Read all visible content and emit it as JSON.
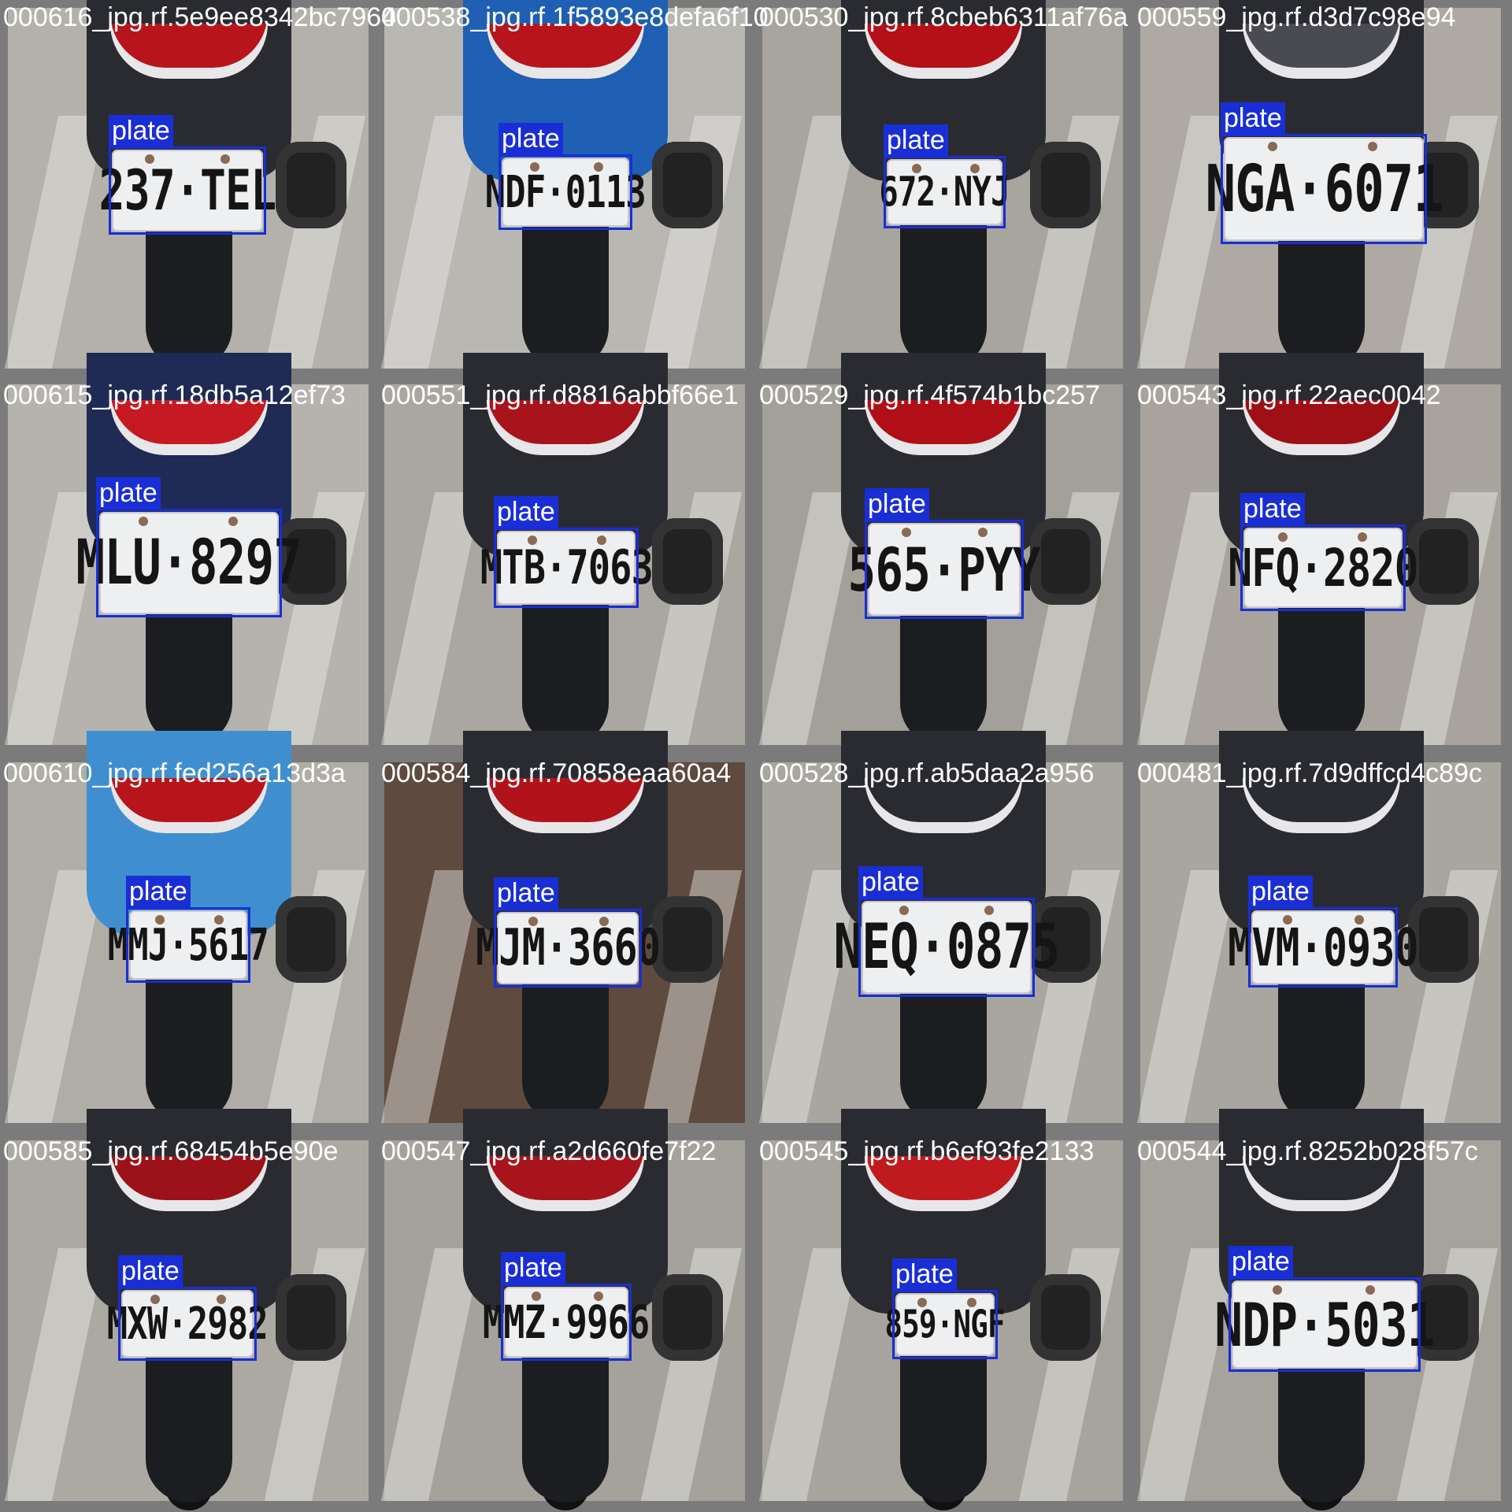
{
  "tiles": [
    {
      "filename": "000616_jpg.rf.5e9ee8342bc7964",
      "class_label": "plate",
      "plate_text": "237·TEL",
      "colors": {
        "tail": "#b7151b",
        "floor": "#b4b1ab"
      }
    },
    {
      "filename": "000538_jpg.rf.1f5893e8defa6f10",
      "class_label": "plate",
      "plate_text": "NDF·0113",
      "colors": {
        "tail": "#b7151b",
        "floor": "#b9b7b2"
      }
    },
    {
      "filename": "000530_jpg.rf.8cbeb6311af76a",
      "class_label": "plate",
      "plate_text": "672·NYJ",
      "colors": {
        "tail": "#b50f18",
        "floor": "#a8a49e"
      }
    },
    {
      "filename": "000559_jpg.rf.d3d7c98e94",
      "class_label": "plate",
      "plate_text": "NGA·6071",
      "colors": {
        "tail": "#4a4b52",
        "floor": "#aeaaa3"
      }
    },
    {
      "filename": "000615_jpg.rf.18db5a12ef73",
      "class_label": "plate",
      "plate_text": "MLU·8297",
      "colors": {
        "tail": "#c51a22",
        "floor": "#b6b3ae"
      }
    },
    {
      "filename": "000551_jpg.rf.d8816abbf66e1",
      "class_label": "plate",
      "plate_text": "MTB·7063",
      "colors": {
        "tail": "#a8141c",
        "floor": "#aaa7a1"
      }
    },
    {
      "filename": "000529_jpg.rf.4f574b1bc257",
      "class_label": "plate",
      "plate_text": "565·PYY",
      "colors": {
        "tail": "#b10f17",
        "floor": "#a3a09a"
      }
    },
    {
      "filename": "000543_jpg.rf.22aec0042",
      "class_label": "plate",
      "plate_text": "NFQ·2820",
      "colors": {
        "tail": "#9e1016",
        "floor": "#a8a49d"
      }
    },
    {
      "filename": "000610_jpg.rf.fed256a13d3a",
      "class_label": "plate",
      "plate_text": "MMJ·5617",
      "colors": {
        "tail": "#b7151b",
        "floor": "#b0ada7"
      }
    },
    {
      "filename": "000584_jpg.rf.70858eaa60a4",
      "class_label": "plate",
      "plate_text": "MJM·3660",
      "colors": {
        "tail": "#b2131b",
        "floor": "#5e4a3f"
      }
    },
    {
      "filename": "000528_jpg.rf.ab5daa2a956",
      "class_label": "plate",
      "plate_text": "NEQ·0875",
      "colors": {
        "tail": "#2a2b30",
        "floor": "#a9a6a0"
      }
    },
    {
      "filename": "000481_jpg.rf.7d9dffcd4c89c",
      "class_label": "plate",
      "plate_text": "MVM·0930",
      "colors": {
        "tail": "#2b2c31",
        "floor": "#a9a6a0"
      }
    },
    {
      "filename": "000585_jpg.rf.68454b5e90e",
      "class_label": "plate",
      "plate_text": "MXW·2982",
      "colors": {
        "tail": "#9c1218",
        "floor": "#aca9a3"
      }
    },
    {
      "filename": "000547_jpg.rf.a2d660fe7f22",
      "class_label": "plate",
      "plate_text": "MMZ·9966",
      "colors": {
        "tail": "#a8141c",
        "floor": "#a5a29c"
      }
    },
    {
      "filename": "000545_jpg.rf.b6ef93fe2133",
      "class_label": "plate",
      "plate_text": "859·NGF",
      "colors": {
        "tail": "#c01a1e",
        "floor": "#a7a39d"
      }
    },
    {
      "filename": "000544_jpg.rf.8252b028f57c",
      "class_label": "plate",
      "plate_text": "NDP·5031",
      "colors": {
        "tail": "#2a2b30",
        "floor": "#a6a29c"
      }
    }
  ],
  "colors": {
    "bbox": "#1a2ed6",
    "label_text": "#ffffff",
    "grid_background": "#7b7b7b"
  }
}
